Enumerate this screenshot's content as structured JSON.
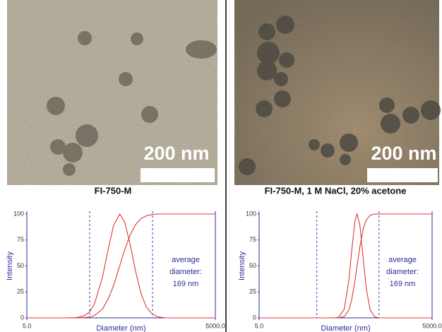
{
  "images": [
    {
      "scale_bar": "200 nm"
    },
    {
      "scale_bar": "200 nm"
    }
  ],
  "chart_data": [
    {
      "type": "line",
      "title": "FI-750-M",
      "xlabel": "Diameter (nm)",
      "ylabel": "Intensity",
      "xscale": "log",
      "xlim": [
        5,
        5000
      ],
      "xticks": [
        {
          "value": 5,
          "label": "5.0"
        },
        {
          "value": 5000,
          "label": "5000.0"
        }
      ],
      "ylim": [
        0,
        100
      ],
      "yticks": [
        0,
        25,
        50,
        75,
        100
      ],
      "vlines": [
        50,
        500
      ],
      "vline_color": "#3a3aaa",
      "annotation": [
        "average",
        "diameter:",
        "169 nm"
      ],
      "x": [
        5,
        20,
        30,
        40,
        50,
        60,
        80,
        100,
        120,
        150,
        180,
        220,
        270,
        330,
        400,
        500,
        600,
        800,
        5000
      ],
      "series": [
        {
          "color": "#e03535",
          "values": [
            0,
            0,
            0.2,
            1.6,
            5.8,
            13.8,
            39.4,
            67.9,
            88.9,
            100,
            92.5,
            70.9,
            44.4,
            23,
            10.3,
            3.3,
            1.1,
            0,
            0
          ]
        },
        {
          "color": "#e03535",
          "values": [
            0,
            0,
            0,
            0.2,
            0.8,
            2.3,
            8.5,
            19,
            31,
            50,
            65.5,
            79.7,
            90,
            95.7,
            98.3,
            99.6,
            100,
            100,
            100
          ]
        }
      ]
    },
    {
      "type": "line",
      "title": "FI-750-M, 1 M NaCl, 20% acetone",
      "xlabel": "Diameter (nm)",
      "ylabel": "Intensity",
      "xscale": "log",
      "xlim": [
        5,
        5000
      ],
      "xticks": [
        {
          "value": 5,
          "label": "5.0"
        },
        {
          "value": 5000,
          "label": "5000.0"
        }
      ],
      "ylim": [
        0,
        100
      ],
      "yticks": [
        0,
        25,
        50,
        75,
        100
      ],
      "vlines": [
        50,
        600
      ],
      "vline_color": "#3a3aaa",
      "annotation": [
        "average",
        "diameter:",
        "169 nm"
      ],
      "x": [
        5,
        100,
        120,
        150,
        180,
        200,
        230,
        250,
        280,
        320,
        360,
        420,
        500,
        600,
        5000
      ],
      "series": [
        {
          "color": "#e03535",
          "values": [
            0,
            0,
            0.6,
            8.5,
            36,
            62.5,
            93.7,
            100,
            88.7,
            56.4,
            28.7,
            8,
            1.1,
            0,
            0
          ]
        },
        {
          "color": "#e03535",
          "values": [
            0,
            0,
            0.1,
            1.3,
            7.6,
            16.6,
            35.9,
            50,
            68.8,
            85.8,
            94.3,
            98.8,
            99.9,
            100,
            100
          ]
        }
      ]
    }
  ]
}
